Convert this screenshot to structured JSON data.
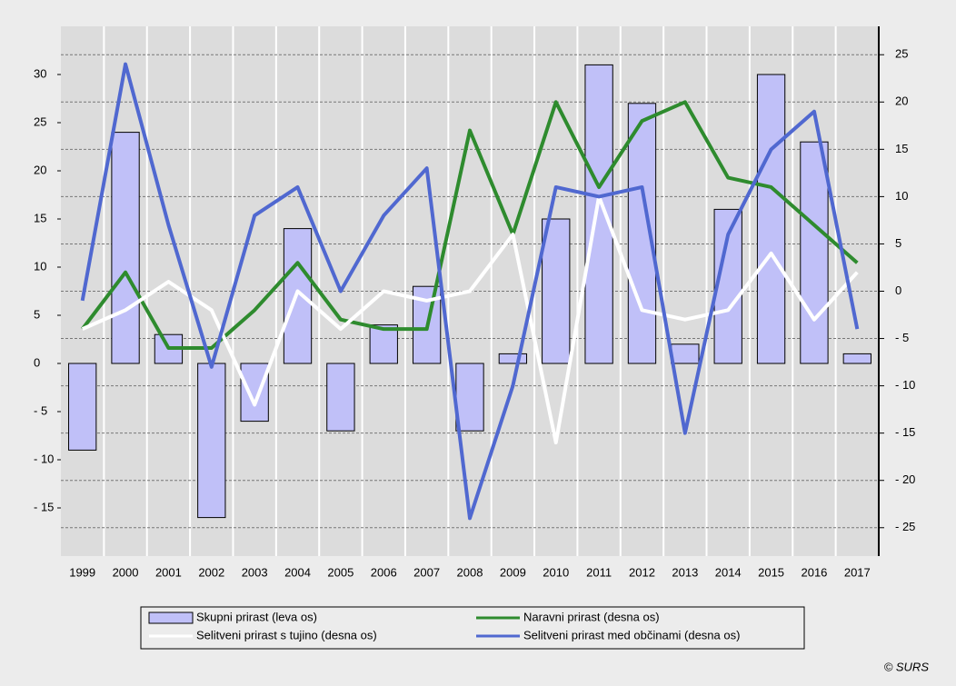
{
  "chart_data": {
    "type": "bar",
    "categories": [
      "1999",
      "2000",
      "2001",
      "2002",
      "2003",
      "2004",
      "2005",
      "2006",
      "2007",
      "2008",
      "2009",
      "2010",
      "2011",
      "2012",
      "2013",
      "2014",
      "2015",
      "2016",
      "2017"
    ],
    "series": [
      {
        "name": "Skupni prirast (leva os)",
        "type": "bar",
        "color": "#c0c0f8",
        "values": [
          -9,
          24,
          3,
          -16,
          -6,
          14,
          -7,
          4,
          8,
          -7,
          1,
          15,
          31,
          27,
          2,
          16,
          30,
          23,
          1
        ]
      },
      {
        "name": "Naravni prirast (desna os)",
        "type": "line",
        "axis": "y2",
        "color": "#2e8b2e",
        "values": [
          -4,
          2,
          -6,
          -6,
          -2,
          3,
          -3,
          -4,
          -4,
          17,
          6,
          20,
          11,
          18,
          20,
          12,
          11,
          7,
          3
        ]
      },
      {
        "name": "Selitveni prirast s tujino (desna os)",
        "type": "line",
        "axis": "y2",
        "color": "#ffffff",
        "values": [
          -4,
          -2,
          1,
          -2,
          -12,
          0,
          -4,
          0,
          -1,
          0,
          6,
          -16,
          10,
          -2,
          -3,
          -2,
          4,
          -3,
          2
        ]
      },
      {
        "name": "Selitveni prirast med občinami (desna os)",
        "type": "line",
        "axis": "y2",
        "color": "#5068d0",
        "values": [
          -1,
          24,
          7,
          -8,
          8,
          11,
          0,
          8,
          13,
          -24,
          -10,
          11,
          10,
          11,
          -15,
          6,
          15,
          19,
          -4
        ]
      }
    ],
    "ylim": [
      -20,
      35
    ],
    "yticks": [
      {
        "value": -15,
        "label": "- 15"
      },
      {
        "value": -10,
        "label": "- 10"
      },
      {
        "value": -5,
        "label": "- 5"
      },
      0,
      5,
      10,
      15,
      20,
      25,
      30
    ],
    "y2lim": [
      -28,
      28
    ],
    "y2ticks": [
      {
        "value": -25,
        "label": "- 25"
      },
      {
        "value": -20,
        "label": "- 20"
      },
      {
        "value": -15,
        "label": "- 15"
      },
      {
        "value": -10,
        "label": "- 10"
      },
      {
        "value": -5,
        "label": "- 5"
      },
      0,
      5,
      10,
      15,
      20,
      25
    ],
    "grid": true,
    "source": "© SURS"
  }
}
